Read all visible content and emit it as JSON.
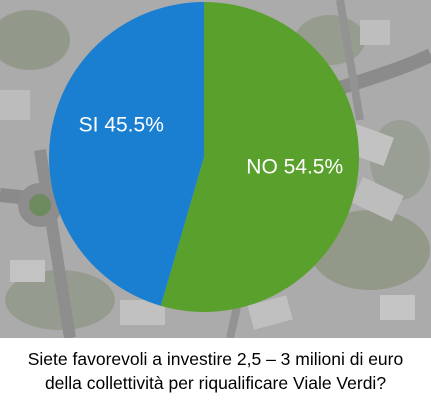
{
  "chart_data": {
    "type": "pie",
    "categories": [
      "NO",
      "SI"
    ],
    "values": [
      54.5,
      45.5
    ],
    "data_labels": [
      "NO 54.5%",
      "SI 45.5%"
    ],
    "colors": [
      "#5aa02c",
      "#1a7fd1"
    ],
    "title_lines": [
      "Siete favorevoli a investire 2,5 – 3 milioni di euro",
      "della collettività per riqualificare Viale Verdi?"
    ],
    "start_angle_deg": 0,
    "direction": "clockwise",
    "legend": "none"
  },
  "background": {
    "kind": "aerial-map-photo",
    "road_color": "#8d8d8d",
    "roof_color": "#b3b3b3",
    "greenery_color": "#7d8a6b"
  }
}
